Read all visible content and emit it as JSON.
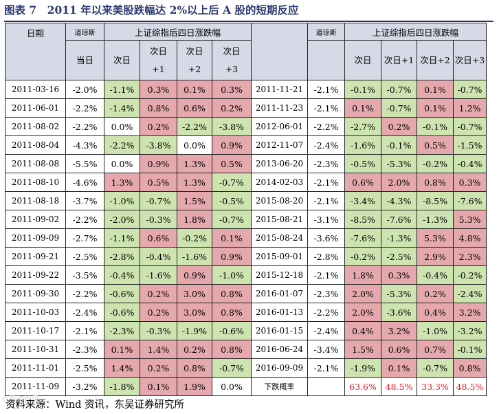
{
  "title": "图表 7　2011 年以来美股跌幅达 2%以上后 A 股的短期反应",
  "headers": {
    "date": "日期",
    "dow": "道琼斯",
    "group": "上证综指后四日涨跌幅",
    "day0": "当日",
    "day1": "次日",
    "day2_a": "次日",
    "day2_b": "+1",
    "day3_a": "次日",
    "day3_b": "+2",
    "day4_a": "次日",
    "day4_b": "+3",
    "r_date": "",
    "r_dow": "道琼斯",
    "r_group": "上证综指后四日涨跌幅",
    "r_day0": "次日",
    "r_day1": "次日+1",
    "r_day2": "次日+2",
    "r_day3": "次日+3"
  },
  "left_rows": [
    {
      "date": "2011-03-16",
      "dow": "-2.0%",
      "v": [
        "-1.1%",
        "0.3%",
        "0.1%",
        "0.3%"
      ]
    },
    {
      "date": "2011-06-01",
      "dow": "-2.2%",
      "v": [
        "-1.4%",
        "0.8%",
        "0.6%",
        "0.2%"
      ]
    },
    {
      "date": "2011-08-02",
      "dow": "-2.2%",
      "v": [
        "0.0%",
        "0.2%",
        "-2.2%",
        "-3.8%"
      ]
    },
    {
      "date": "2011-08-04",
      "dow": "-4.3%",
      "v": [
        "-2.2%",
        "-3.8%",
        "0.0%",
        "0.9%"
      ]
    },
    {
      "date": "2011-08-08",
      "dow": "-5.5%",
      "v": [
        "0.0%",
        "0.9%",
        "1.3%",
        "0.5%"
      ]
    },
    {
      "date": "2011-08-10",
      "dow": "-4.6%",
      "v": [
        "1.3%",
        "0.5%",
        "1.3%",
        "-0.7%"
      ]
    },
    {
      "date": "2011-08-18",
      "dow": "-3.7%",
      "v": [
        "-1.0%",
        "-0.7%",
        "1.5%",
        "-0.5%"
      ]
    },
    {
      "date": "2011-09-02",
      "dow": "-2.2%",
      "v": [
        "-2.0%",
        "-0.3%",
        "1.8%",
        "-0.7%"
      ]
    },
    {
      "date": "2011-09-09",
      "dow": "-2.7%",
      "v": [
        "-1.1%",
        "0.6%",
        "-0.2%",
        "0.1%"
      ]
    },
    {
      "date": "2011-09-21",
      "dow": "-2.5%",
      "v": [
        "-2.8%",
        "-0.4%",
        "-1.6%",
        "0.9%"
      ]
    },
    {
      "date": "2011-09-22",
      "dow": "-3.5%",
      "v": [
        "-0.4%",
        "-1.6%",
        "0.9%",
        "-1.0%"
      ]
    },
    {
      "date": "2011-09-30",
      "dow": "-2.2%",
      "v": [
        "-0.6%",
        "0.2%",
        "3.0%",
        "0.8%"
      ]
    },
    {
      "date": "2011-10-03",
      "dow": "-2.4%",
      "v": [
        "-0.6%",
        "0.2%",
        "3.0%",
        "0.8%"
      ]
    },
    {
      "date": "2011-10-17",
      "dow": "-2.1%",
      "v": [
        "-2.3%",
        "-0.3%",
        "-1.9%",
        "-0.6%"
      ]
    },
    {
      "date": "2011-10-31",
      "dow": "-2.3%",
      "v": [
        "0.1%",
        "1.4%",
        "0.2%",
        "0.8%"
      ]
    },
    {
      "date": "2011-11-01",
      "dow": "-2.5%",
      "v": [
        "1.4%",
        "0.2%",
        "0.8%",
        "-0.7%"
      ]
    },
    {
      "date": "2011-11-09",
      "dow": "-3.2%",
      "v": [
        "-1.8%",
        "0.1%",
        "1.9%",
        "0.0%"
      ]
    }
  ],
  "right_rows": [
    {
      "date": "2011-11-21",
      "dow": "-2.1%",
      "v": [
        "-0.1%",
        "-0.7%",
        "0.1%",
        "-0.7%"
      ]
    },
    {
      "date": "2011-11-23",
      "dow": "-2.1%",
      "v": [
        "0.1%",
        "-0.7%",
        "0.1%",
        "1.2%"
      ]
    },
    {
      "date": "2012-06-01",
      "dow": "-2.2%",
      "v": [
        "-2.7%",
        "0.2%",
        "-0.1%",
        "-0.7%"
      ]
    },
    {
      "date": "2012-11-07",
      "dow": "-2.4%",
      "v": [
        "-1.6%",
        "-0.1%",
        "0.5%",
        "-1.5%"
      ]
    },
    {
      "date": "2013-06-20",
      "dow": "-2.3%",
      "v": [
        "-0.5%",
        "-5.3%",
        "-0.2%",
        "-0.4%"
      ]
    },
    {
      "date": "2014-02-03",
      "dow": "-2.1%",
      "v": [
        "0.6%",
        "2.0%",
        "0.8%",
        "0.3%"
      ]
    },
    {
      "date": "2015-08-20",
      "dow": "-2.1%",
      "v": [
        "-3.4%",
        "-4.3%",
        "-8.5%",
        "-7.6%"
      ]
    },
    {
      "date": "2015-08-21",
      "dow": "-3.1%",
      "v": [
        "-8.5%",
        "-7.6%",
        "-1.3%",
        "5.3%"
      ]
    },
    {
      "date": "2015-08-24",
      "dow": "-3.6%",
      "v": [
        "-7.6%",
        "-1.3%",
        "5.3%",
        "4.8%"
      ]
    },
    {
      "date": "2015-09-01",
      "dow": "-2.8%",
      "v": [
        "-0.2%",
        "-2.5%",
        "2.9%",
        "2.3%"
      ]
    },
    {
      "date": "2015-12-18",
      "dow": "-2.1%",
      "v": [
        "1.8%",
        "0.3%",
        "-0.4%",
        "-0.2%"
      ]
    },
    {
      "date": "2016-01-07",
      "dow": "-2.3%",
      "v": [
        "2.0%",
        "-5.3%",
        "0.2%",
        "-2.4%"
      ]
    },
    {
      "date": "2016-01-13",
      "dow": "-2.2%",
      "v": [
        "2.0%",
        "-3.6%",
        "0.4%",
        "3.2%"
      ]
    },
    {
      "date": "2016-01-15",
      "dow": "-2.4%",
      "v": [
        "0.4%",
        "3.2%",
        "-1.0%",
        "-3.2%"
      ]
    },
    {
      "date": "2016-06-24",
      "dow": "-3.4%",
      "v": [
        "1.5%",
        "0.6%",
        "0.7%",
        "-0.1%"
      ]
    },
    {
      "date": "2016-09-09",
      "dow": "-2.1%",
      "v": [
        "-1.9%",
        "0.1%",
        "-0.7%",
        "0.8%"
      ]
    }
  ],
  "prob_row": {
    "label": "下跌概率",
    "dow": "",
    "v": [
      "63.6%",
      "48.5%",
      "33.3%",
      "48.5%"
    ]
  },
  "colors": {
    "negative": "#cde3b0",
    "positive": "#e5a8ad",
    "header": "#d6dae7",
    "title": "#2a3a72",
    "probability": "#e0202a"
  },
  "source": "资料来源：Wind 资讯，东吴证券研究所",
  "watermark": "©股海拾贝"
}
